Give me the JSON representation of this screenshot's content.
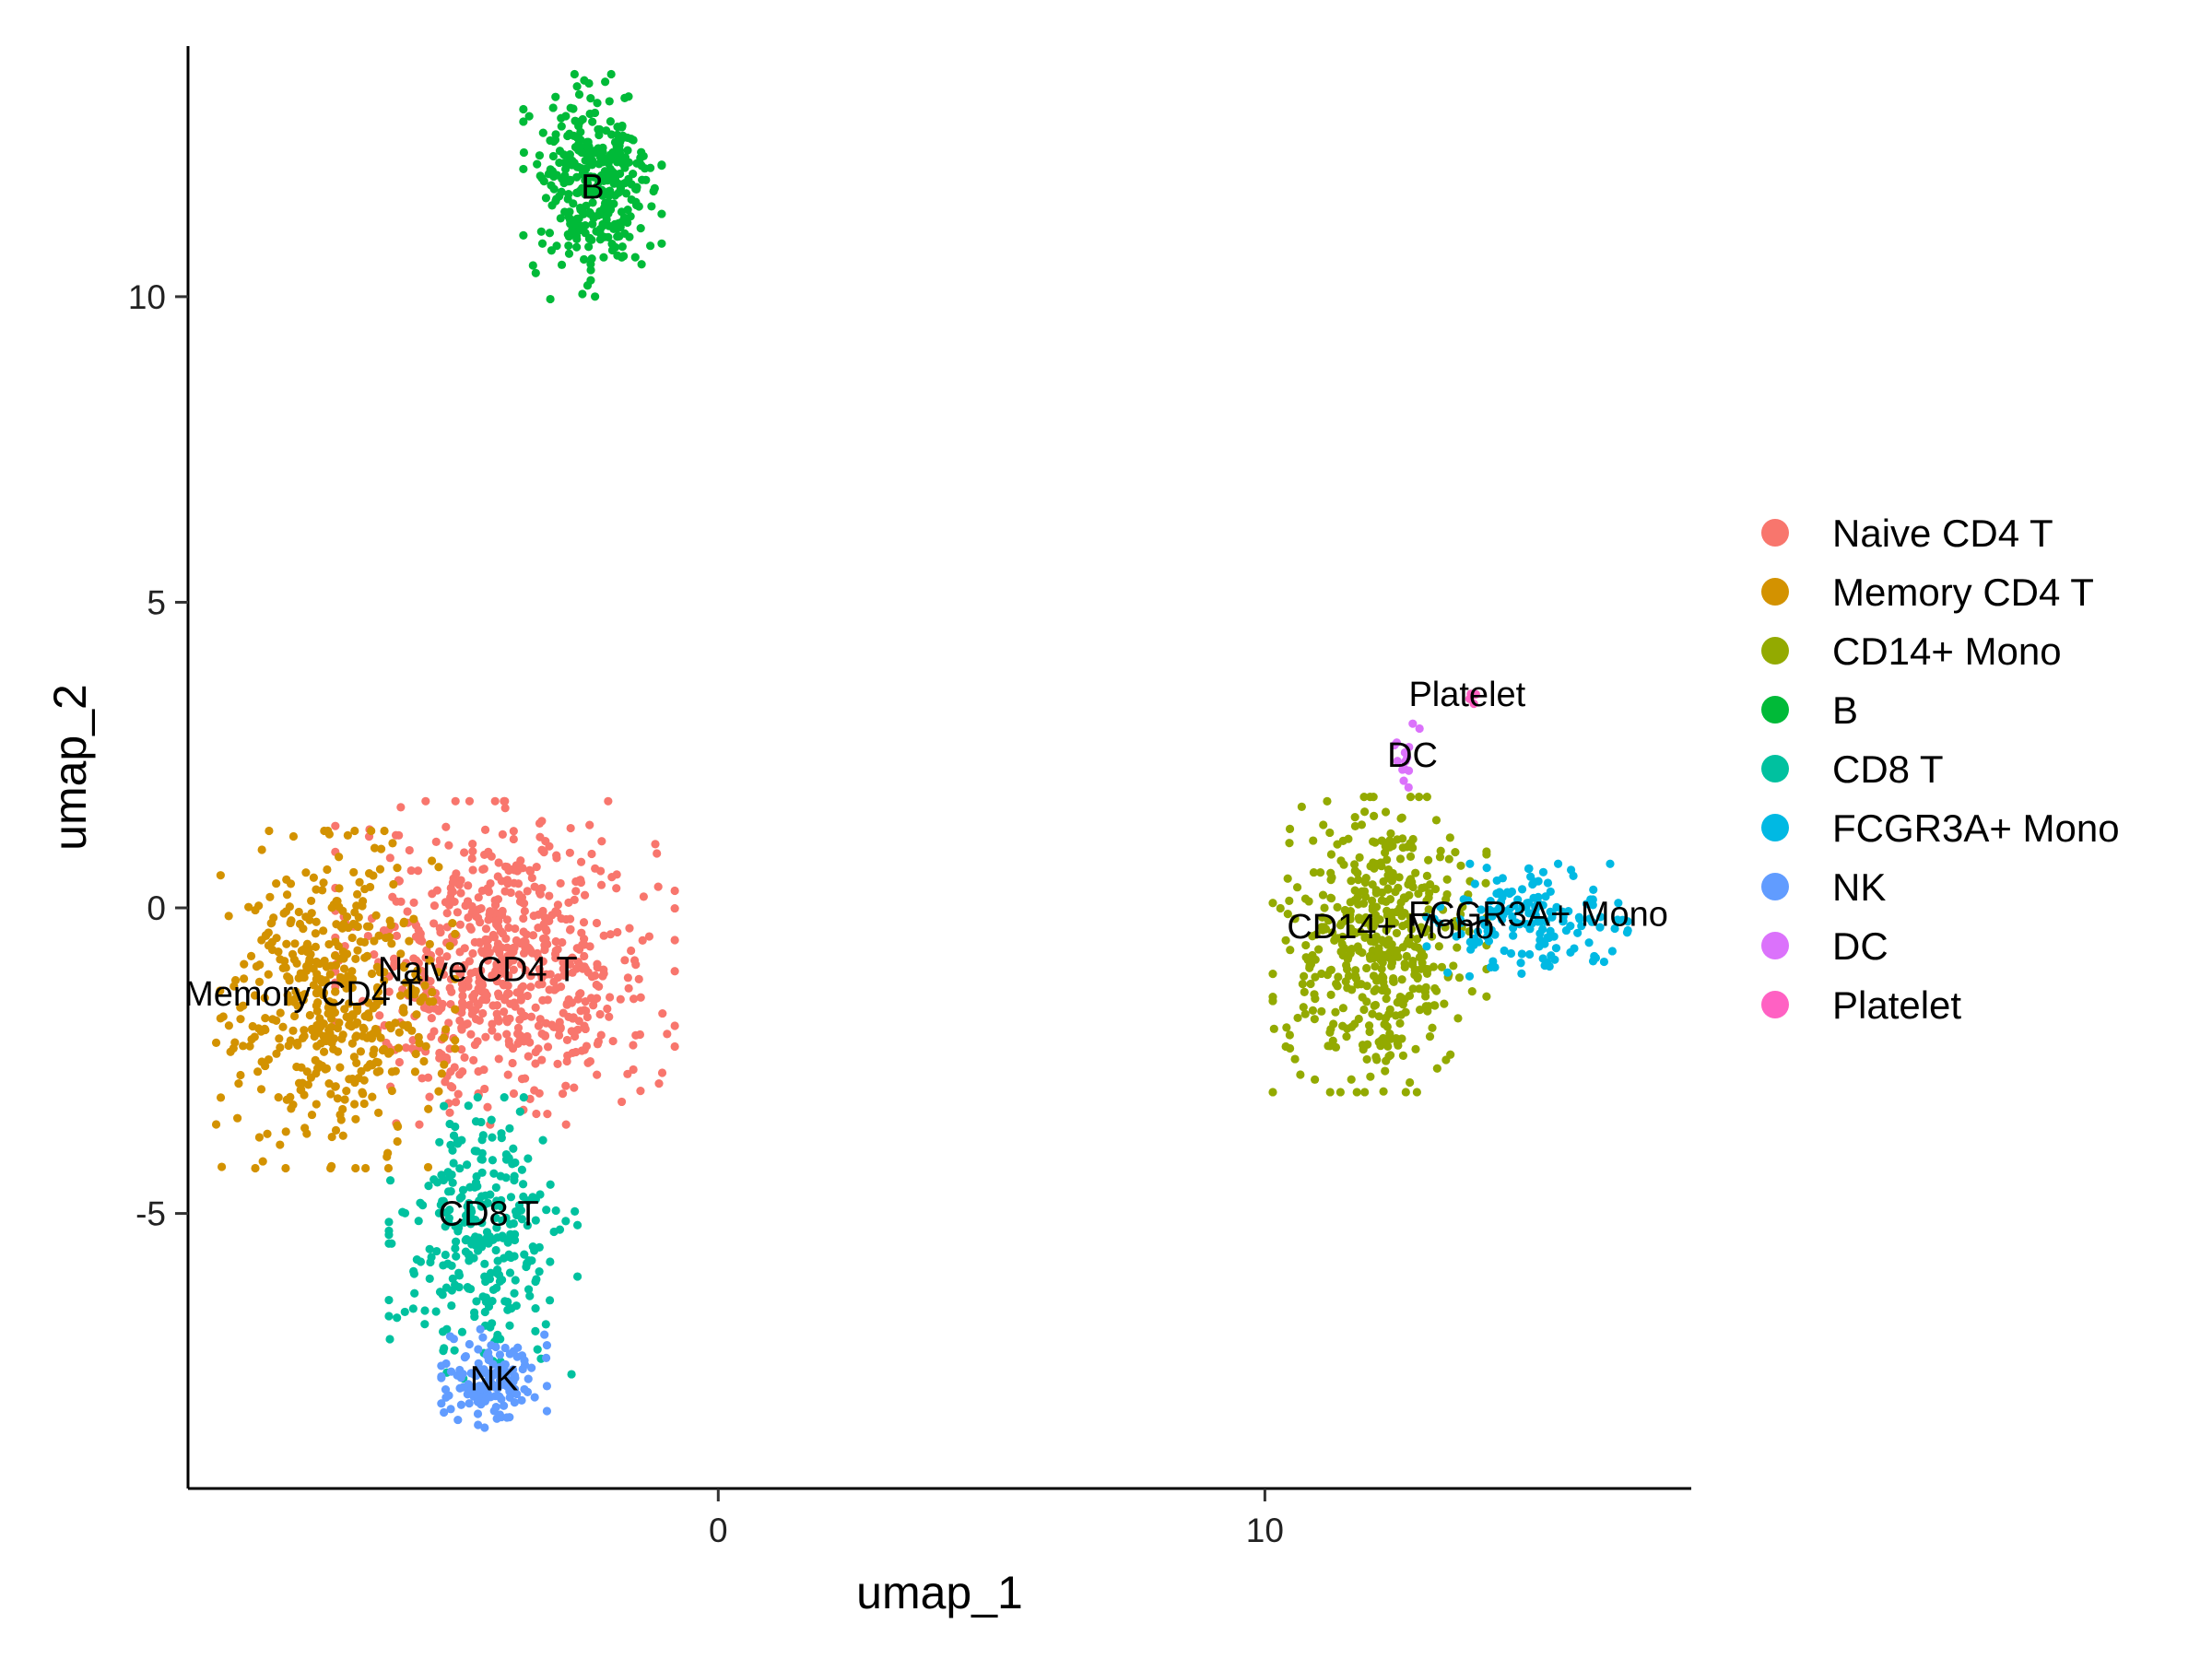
{
  "chart_data": {
    "type": "scatter",
    "title": "",
    "xlabel": "umap_1",
    "ylabel": "umap_2",
    "xlim": [
      -9.7,
      17.8
    ],
    "ylim": [
      -9.5,
      14.1
    ],
    "x_ticks": [
      0,
      10
    ],
    "y_ticks": [
      -5,
      0,
      5,
      10
    ],
    "x_tick_labels": [
      "0",
      "10"
    ],
    "y_tick_labels": [
      "-5",
      "0",
      "5",
      "10"
    ],
    "grid": false,
    "legend_position": "right",
    "legend_entries": [
      "Naive CD4 T",
      "Memory CD4 T",
      "CD14+ Mono",
      "B",
      "CD8 T",
      "FCGR3A+ Mono",
      "NK",
      "DC",
      "Platelet"
    ],
    "series": [
      {
        "name": "Naive CD4 T",
        "color": "#F8766D",
        "center": [
          -3.9,
          -0.9
        ],
        "spread": [
          1.35,
          1.15
        ],
        "count": 700,
        "label": "Naive CD4 T",
        "label_pos": [
          -4.4,
          -1.0
        ]
      },
      {
        "name": "Memory CD4 T",
        "color": "#D39200",
        "center": [
          -7.0,
          -1.5
        ],
        "spread": [
          0.95,
          1.2
        ],
        "count": 480,
        "label": "Memory CD4 T",
        "label_pos": [
          -7.6,
          -1.4
        ]
      },
      {
        "name": "CD14+ Mono",
        "color": "#93AA00",
        "center": [
          12.1,
          -0.6
        ],
        "spread": [
          0.85,
          1.05
        ],
        "count": 480,
        "label": "CD14+ Mono",
        "label_pos": [
          12.3,
          -0.3
        ]
      },
      {
        "name": "B",
        "color": "#00BA38",
        "center": [
          -2.3,
          11.8
        ],
        "spread": [
          0.55,
          0.8
        ],
        "count": 340,
        "label": "B",
        "label_pos": [
          -2.3,
          11.8
        ]
      },
      {
        "name": "CD8 T",
        "color": "#00C19F",
        "center": [
          -4.3,
          -5.4
        ],
        "spread": [
          0.75,
          1.0
        ],
        "count": 290,
        "label": "CD8 T",
        "label_pos": [
          -4.2,
          -5.0
        ]
      },
      {
        "name": "FCGR3A+ Mono",
        "color": "#00B9E3",
        "center": [
          14.8,
          -0.2
        ],
        "spread": [
          0.8,
          0.4
        ],
        "count": 160,
        "label": "FCGR3A+ Mono",
        "label_pos": [
          15.0,
          -0.1
        ]
      },
      {
        "name": "NK",
        "color": "#619CFF",
        "center": [
          -4.1,
          -7.7
        ],
        "spread": [
          0.42,
          0.35
        ],
        "count": 150,
        "label": "NK",
        "label_pos": [
          -4.1,
          -7.7
        ]
      },
      {
        "name": "DC",
        "color": "#DB72FB",
        "center": [
          12.6,
          2.4
        ],
        "spread": [
          0.12,
          0.3
        ],
        "count": 14,
        "label": "DC",
        "label_pos": [
          12.7,
          2.5
        ]
      },
      {
        "name": "Platelet",
        "color": "#FF61C3",
        "center": [
          13.8,
          3.45
        ],
        "spread": [
          0.05,
          0.05
        ],
        "count": 5,
        "label": "Platelet",
        "label_pos": [
          13.7,
          3.5
        ]
      }
    ]
  }
}
